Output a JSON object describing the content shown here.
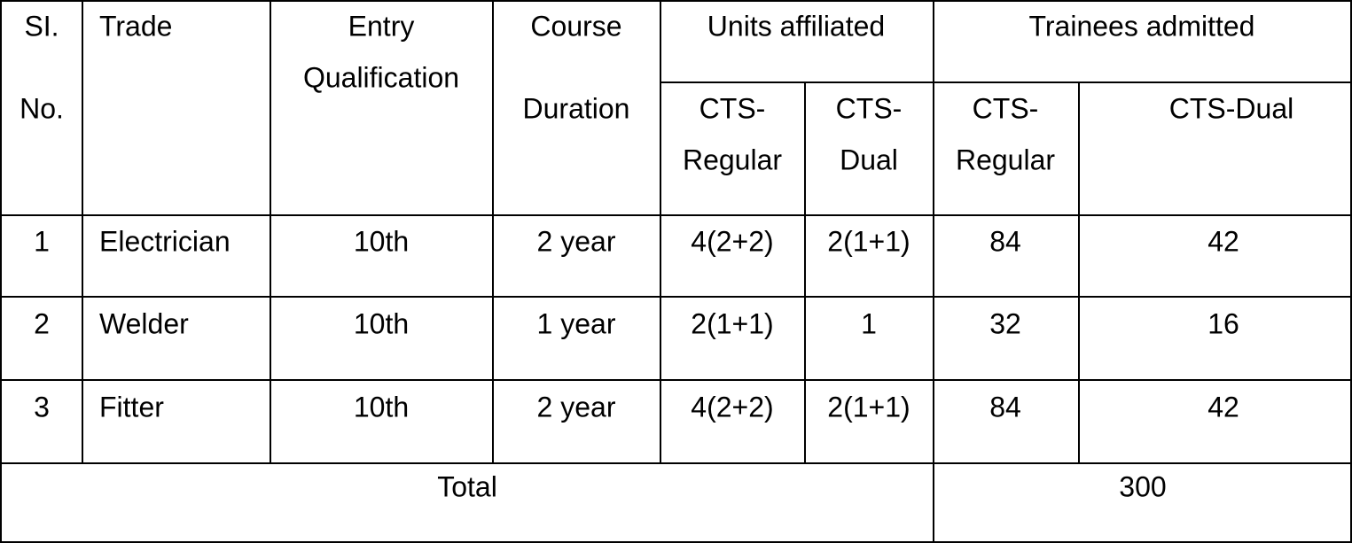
{
  "table": {
    "header": [
      [
        "SI.",
        "No."
      ],
      [
        "Trade"
      ],
      [
        "Entry",
        "Qualification"
      ],
      [
        "Course",
        "Duration"
      ],
      [
        "Units affiliated"
      ],
      [
        "Trainees admitted"
      ]
    ],
    "subheader": [
      [
        "CTS-",
        "Regular"
      ],
      [
        "CTS-",
        "Dual"
      ],
      [
        "CTS-",
        "Regular"
      ],
      [
        "CTS-Dual"
      ]
    ],
    "rows": [
      [
        1,
        "Electrician",
        "10th",
        "2 year",
        "4(2+2)",
        "2(1+1)",
        84,
        42
      ],
      [
        2,
        "Welder",
        "10th",
        "1 year",
        "2(1+1)",
        1,
        32,
        16
      ],
      [
        3,
        "Fitter",
        "10th",
        "2 year",
        "4(2+2)",
        "2(1+1)",
        84,
        42
      ]
    ],
    "total": {
      "label": "Total",
      "value": 300
    }
  }
}
